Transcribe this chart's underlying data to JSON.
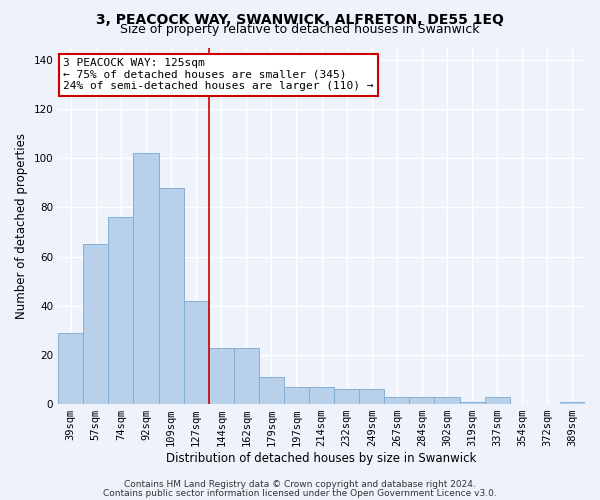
{
  "title": "3, PEACOCK WAY, SWANWICK, ALFRETON, DE55 1EQ",
  "subtitle": "Size of property relative to detached houses in Swanwick",
  "xlabel": "Distribution of detached houses by size in Swanwick",
  "ylabel": "Number of detached properties",
  "categories": [
    "39sqm",
    "57sqm",
    "74sqm",
    "92sqm",
    "109sqm",
    "127sqm",
    "144sqm",
    "162sqm",
    "179sqm",
    "197sqm",
    "214sqm",
    "232sqm",
    "249sqm",
    "267sqm",
    "284sqm",
    "302sqm",
    "319sqm",
    "337sqm",
    "354sqm",
    "372sqm",
    "389sqm"
  ],
  "values": [
    29,
    65,
    76,
    102,
    88,
    42,
    23,
    23,
    11,
    7,
    7,
    6,
    6,
    3,
    3,
    3,
    1,
    3,
    0,
    0,
    1
  ],
  "bar_color": "#b8d0ea",
  "bar_edge_color": "#7aaad0",
  "highlight_index": 5,
  "highlight_line_color": "#cc0000",
  "annotation_text": "3 PEACOCK WAY: 125sqm\n← 75% of detached houses are smaller (345)\n24% of semi-detached houses are larger (110) →",
  "annotation_box_color": "#ffffff",
  "annotation_box_edge_color": "#cc0000",
  "ylim": [
    0,
    145
  ],
  "yticks": [
    0,
    20,
    40,
    60,
    80,
    100,
    120,
    140
  ],
  "footer_line1": "Contains HM Land Registry data © Crown copyright and database right 2024.",
  "footer_line2": "Contains public sector information licensed under the Open Government Licence v3.0.",
  "background_color": "#eef2fb",
  "grid_color": "#ffffff",
  "title_fontsize": 10,
  "subtitle_fontsize": 9,
  "axis_label_fontsize": 8.5,
  "tick_fontsize": 7.5,
  "annotation_fontsize": 8,
  "footer_fontsize": 6.5
}
